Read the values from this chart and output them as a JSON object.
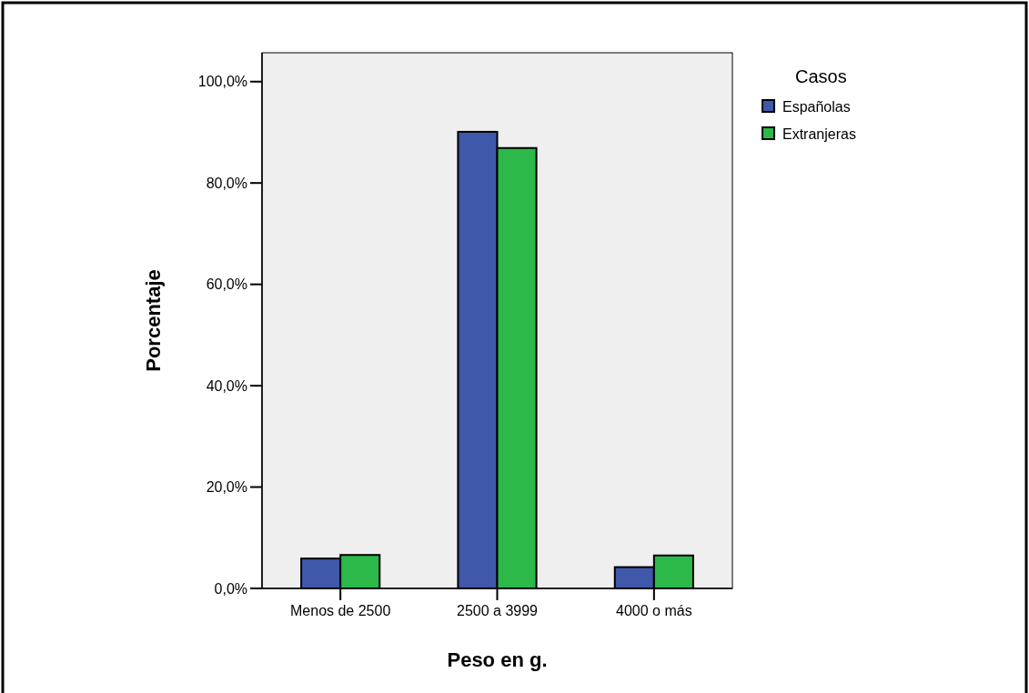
{
  "chart_data": {
    "type": "bar",
    "xlabel": "Peso en g.",
    "ylabel": "Porcentaje",
    "legend_title": "Casos",
    "categories": [
      "Menos de 2500",
      "2500 a 3999",
      "4000 o más"
    ],
    "series": [
      {
        "name": "Españolas",
        "color": "#3f58aa",
        "values": [
          5.9,
          90.1,
          4.2
        ]
      },
      {
        "name": "Extranjeras",
        "color": "#2db84a",
        "values": [
          6.6,
          86.9,
          6.5
        ]
      }
    ],
    "ylim": [
      0,
      105.7
    ],
    "yticks": [
      {
        "value": 0,
        "label": "0,0%"
      },
      {
        "value": 20,
        "label": "20,0%"
      },
      {
        "value": 40,
        "label": "40,0%"
      },
      {
        "value": 60,
        "label": "60,0%"
      },
      {
        "value": 80,
        "label": "80,0%"
      },
      {
        "value": 100,
        "label": "100,0%"
      }
    ],
    "grid": false,
    "legend": "top right"
  }
}
